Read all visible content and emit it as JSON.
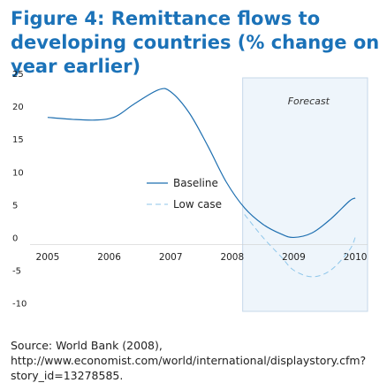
{
  "title": "Figure 4: Remittance flows to developing countries (% change on year earlier)",
  "source": "Source: World Bank (2008), http://www.economist.com/world/international/displaystory.cfm?story_id=13278585.",
  "colors": {
    "title": "#1b72b8",
    "baseline": "#1e6fb0",
    "low_case": "#8ec6ea",
    "forecast_fill": "#eef5fb",
    "forecast_border": "#c6d8ea"
  },
  "chart_data": {
    "type": "line",
    "title": "Figure 4: Remittance flows to developing countries (% change on year earlier)",
    "xlabel": "",
    "ylabel": "",
    "xlim": [
      2004.8,
      2010.2
    ],
    "ylim": [
      -11,
      25
    ],
    "x_ticks": [
      "2005",
      "2006",
      "2007",
      "2008",
      "2009",
      "2010"
    ],
    "y_ticks": [
      "25",
      "20",
      "15",
      "10",
      "5",
      "0",
      "-5",
      "-10"
    ],
    "forecast": {
      "label": "Forecast",
      "x_start": 2008.17,
      "x_end": 2010.2
    },
    "legend": [
      "Baseline",
      "Low case"
    ],
    "series": [
      {
        "name": "Baseline",
        "style": "solid",
        "x": [
          2005,
          2005.4,
          2005.8,
          2006.1,
          2006.4,
          2006.8,
          2007.0,
          2007.3,
          2007.6,
          2007.9,
          2008.2,
          2008.5,
          2008.8,
          2009.0,
          2009.3,
          2009.6,
          2009.9,
          2010
        ],
        "y": [
          18.3,
          18.0,
          17.9,
          18.4,
          20.3,
          22.5,
          22.2,
          19.0,
          14.0,
          8.5,
          4.5,
          2.0,
          0.5,
          0.0,
          0.7,
          2.8,
          5.5,
          6.0
        ]
      },
      {
        "name": "Low case",
        "style": "dashed",
        "x": [
          2008.2,
          2008.5,
          2008.8,
          2009.0,
          2009.3,
          2009.6,
          2009.9,
          2010
        ],
        "y": [
          3.5,
          0.0,
          -3.0,
          -5.0,
          -6.0,
          -5.0,
          -2.0,
          0.0
        ]
      }
    ]
  }
}
